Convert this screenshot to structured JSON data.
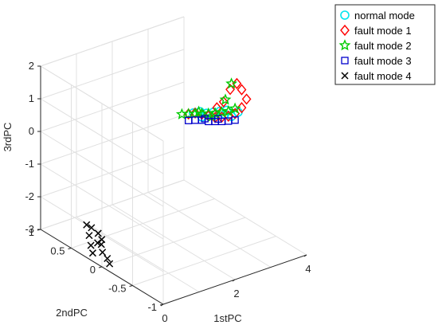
{
  "chart_data": {
    "type": "scatter",
    "projection": "3d",
    "xlabel": "1stPC",
    "ylabel": "2ndPC",
    "zlabel": "3rdPC",
    "xlim": [
      0,
      4
    ],
    "ylim": [
      -1,
      1
    ],
    "zlim": [
      -3,
      2
    ],
    "xticks": [
      "0",
      "2",
      "4"
    ],
    "yticks": [
      "1",
      "0.5",
      "0",
      "-0.5",
      "-1"
    ],
    "zticks": [
      "2",
      "1",
      "0",
      "-1",
      "-2",
      "-3"
    ],
    "grid": true,
    "legend_position": "top-right",
    "series": [
      {
        "name": "normal mode",
        "marker": "circle",
        "color": "#00e5ee",
        "points": [
          [
            3.15,
            0.35,
            0.12
          ],
          [
            3.25,
            0.3,
            0.18
          ],
          [
            3.35,
            0.25,
            0.15
          ],
          [
            3.45,
            0.2,
            0.2
          ],
          [
            3.55,
            0.15,
            0.25
          ],
          [
            3.6,
            0.1,
            0.2
          ],
          [
            3.7,
            0.05,
            0.15
          ],
          [
            3.65,
            0.1,
            0.3
          ],
          [
            3.5,
            0.2,
            0.1
          ],
          [
            3.4,
            0.25,
            0.05
          ],
          [
            3.3,
            0.3,
            0.0
          ],
          [
            3.8,
            0.0,
            0.3
          ]
        ]
      },
      {
        "name": "fault mode 1",
        "marker": "diamond",
        "color": "#ff0000",
        "points": [
          [
            3.1,
            0.4,
            0.05
          ],
          [
            3.2,
            0.35,
            0.1
          ],
          [
            3.3,
            0.3,
            0.08
          ],
          [
            3.4,
            0.25,
            0.05
          ],
          [
            3.5,
            0.2,
            0.02
          ],
          [
            3.6,
            0.15,
            0.05
          ],
          [
            3.7,
            0.1,
            0.1
          ],
          [
            3.8,
            0.05,
            0.2
          ],
          [
            3.9,
            0.0,
            0.4
          ],
          [
            3.95,
            -0.05,
            0.7
          ],
          [
            3.9,
            0.0,
            0.95
          ],
          [
            3.85,
            0.05,
            1.1
          ],
          [
            3.75,
            0.1,
            0.9
          ],
          [
            3.65,
            0.15,
            0.5
          ],
          [
            3.55,
            0.2,
            0.3
          ]
        ]
      },
      {
        "name": "fault mode 2",
        "marker": "star",
        "color": "#00cc00",
        "points": [
          [
            3.0,
            0.45,
            0.02
          ],
          [
            3.1,
            0.4,
            0.05
          ],
          [
            3.2,
            0.35,
            0.08
          ],
          [
            3.3,
            0.3,
            0.1
          ],
          [
            3.4,
            0.25,
            0.12
          ],
          [
            3.5,
            0.2,
            0.15
          ],
          [
            3.6,
            0.15,
            0.2
          ],
          [
            3.7,
            0.1,
            0.25
          ],
          [
            3.8,
            0.05,
            0.35
          ],
          [
            3.75,
            0.08,
            1.1
          ],
          [
            3.65,
            0.12,
            0.6
          ],
          [
            3.45,
            0.22,
            0.05
          ],
          [
            3.25,
            0.32,
            0.15
          ]
        ]
      },
      {
        "name": "fault mode 3",
        "marker": "square",
        "color": "#0000cc",
        "points": [
          [
            3.1,
            0.4,
            -0.15
          ],
          [
            3.2,
            0.35,
            -0.12
          ],
          [
            3.3,
            0.3,
            -0.1
          ],
          [
            3.4,
            0.25,
            -0.12
          ],
          [
            3.5,
            0.2,
            -0.1
          ],
          [
            3.6,
            0.15,
            -0.08
          ],
          [
            3.7,
            0.1,
            -0.05
          ],
          [
            3.8,
            0.05,
            0.0
          ],
          [
            3.35,
            0.28,
            -0.05
          ],
          [
            3.55,
            0.18,
            -0.02
          ]
        ]
      },
      {
        "name": "fault mode 4",
        "marker": "x",
        "color": "#000000",
        "points": [
          [
            0.0,
            0.15,
            -2.75
          ],
          [
            0.0,
            0.18,
            -2.55
          ],
          [
            0.05,
            0.1,
            -2.4
          ],
          [
            0.08,
            0.05,
            -2.25
          ],
          [
            0.1,
            0.12,
            -2.15
          ],
          [
            0.05,
            0.2,
            -2.05
          ],
          [
            0.0,
            0.25,
            -2.0
          ],
          [
            0.12,
            0.08,
            -2.45
          ],
          [
            0.15,
            0.0,
            -2.8
          ],
          [
            0.18,
            -0.02,
            -2.95
          ],
          [
            0.1,
            0.05,
            -2.65
          ],
          [
            0.02,
            0.22,
            -2.3
          ]
        ]
      }
    ]
  }
}
